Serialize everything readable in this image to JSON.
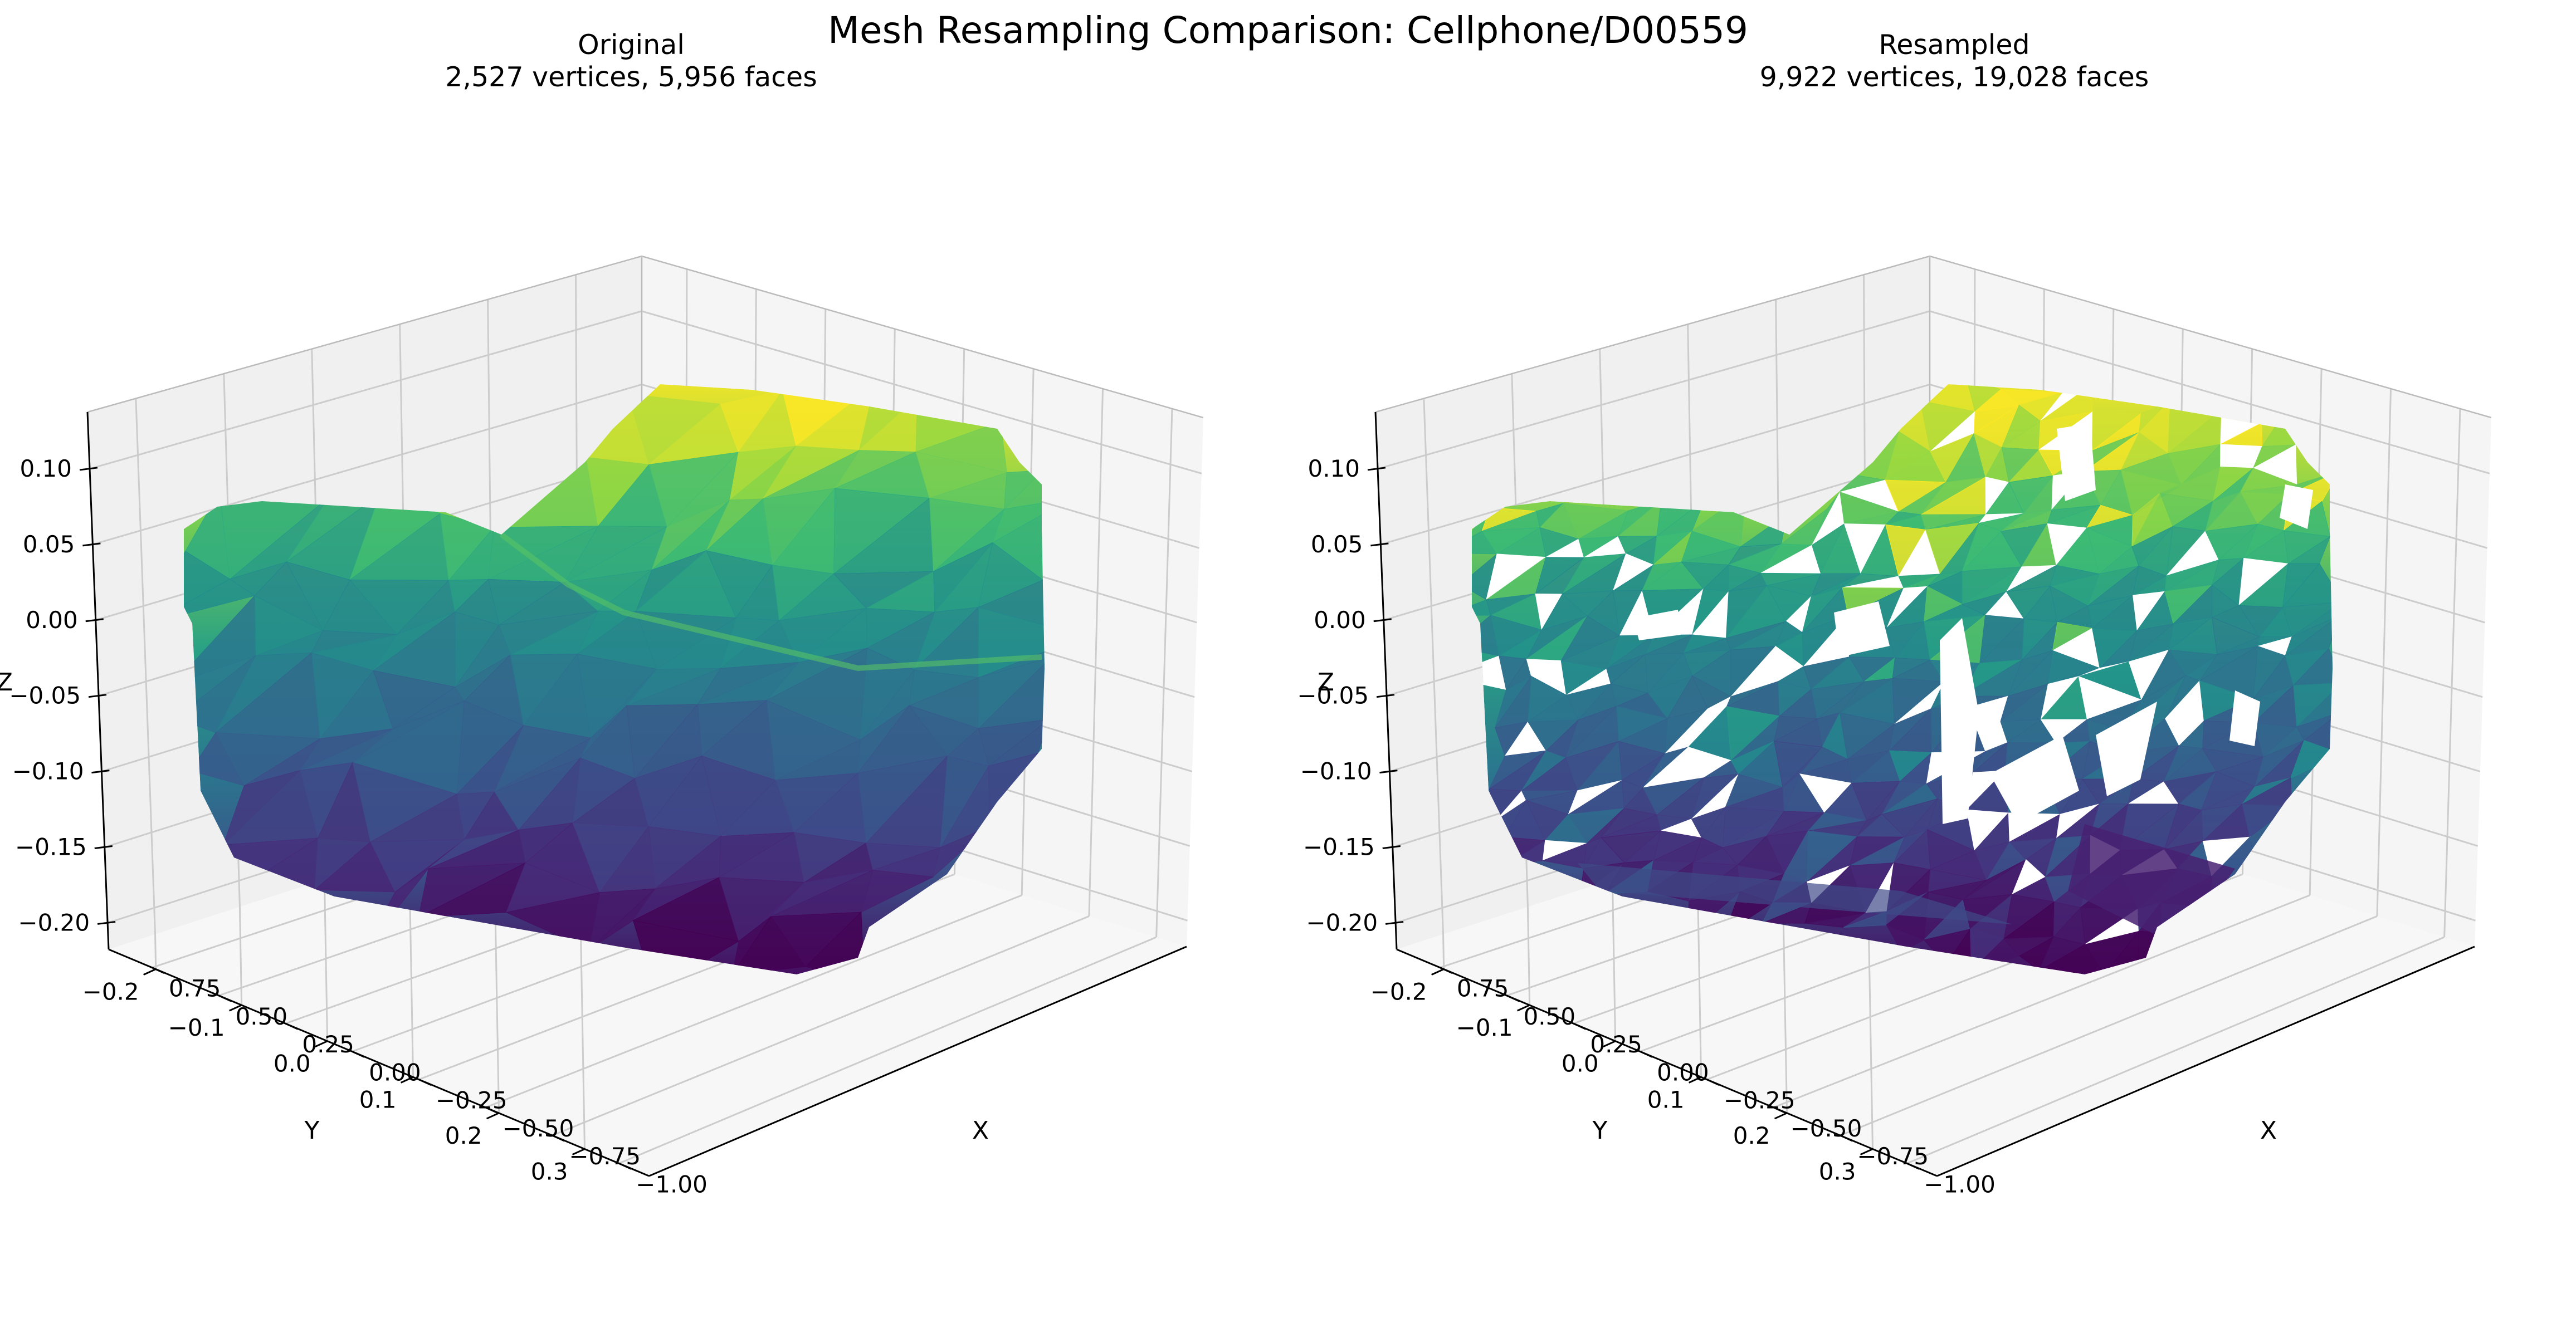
{
  "suptitle": "Mesh Resampling Comparison: Cellphone/D00559",
  "colors": {
    "pane": "#f2f2f2",
    "grid": "#cccccc",
    "axis": "#000000",
    "colormap": "viridis"
  },
  "chart_data": [
    {
      "type": "3d-surface",
      "title": "Original",
      "subtitle": "2,527 vertices, 5,956 faces",
      "vertices": 2527,
      "faces": 5956,
      "xlabel": "X",
      "ylabel": "Y",
      "zlabel": "Z",
      "xticks": [
        "−1.00",
        "−0.75",
        "−0.50",
        "−0.25",
        "0.00",
        "0.25",
        "0.50",
        "0.75"
      ],
      "yticks": [
        "−0.2",
        "−0.1",
        "0.0",
        "0.1",
        "0.2",
        "0.3"
      ],
      "zticks": [
        "−0.20",
        "−0.15",
        "−0.10",
        "−0.05",
        "0.00",
        "0.05",
        "0.10"
      ],
      "xlim": [
        -1.05,
        0.85
      ],
      "ylim": [
        -0.27,
        0.36
      ],
      "zlim": [
        -0.23,
        0.11
      ],
      "grid": true,
      "mesh_style": "solid"
    },
    {
      "type": "3d-surface",
      "title": "Resampled",
      "subtitle": "9,922 vertices, 19,028 faces",
      "vertices": 9922,
      "faces": 19028,
      "xlabel": "X",
      "ylabel": "Y",
      "zlabel": "Z",
      "xticks": [
        "−1.00",
        "−0.75",
        "−0.50",
        "−0.25",
        "0.00",
        "0.25",
        "0.50",
        "0.75"
      ],
      "yticks": [
        "−0.2",
        "−0.1",
        "0.0",
        "0.1",
        "0.2",
        "0.3"
      ],
      "zticks": [
        "−0.20",
        "−0.15",
        "−0.10",
        "−0.05",
        "0.00",
        "0.05",
        "0.10"
      ],
      "xlim": [
        -1.05,
        0.85
      ],
      "ylim": [
        -0.27,
        0.36
      ],
      "zlim": [
        -0.23,
        0.11
      ],
      "grid": true,
      "mesh_style": "fragmented"
    }
  ]
}
